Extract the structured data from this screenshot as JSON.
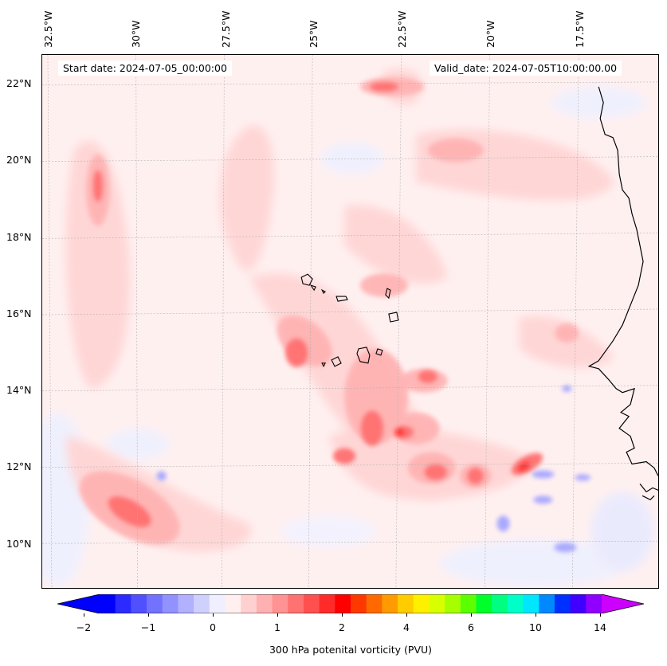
{
  "map": {
    "start_date": "Start date: 2024-07-05_00:00:00",
    "valid_date": "Valid_date: 2024-07-05T10:00:00.00",
    "lon_labels": [
      "32.5°W",
      "30°W",
      "27.5°W",
      "25°W",
      "22.5°W",
      "20°W",
      "17.5°W"
    ],
    "lat_labels": [
      "22°N",
      "20°N",
      "18°N",
      "16°N",
      "14°N",
      "12°N",
      "10°N"
    ]
  },
  "colorbar": {
    "title": "300 hPa potenital vorticity (PVU)",
    "tick_labels": [
      "−2",
      "−1",
      "0",
      "1",
      "2",
      "4",
      "6",
      "10",
      "14"
    ],
    "colors": [
      "#0000ff",
      "#2b2bff",
      "#5050ff",
      "#7272ff",
      "#9292ff",
      "#b1b1ff",
      "#d0d0ff",
      "#efefff",
      "#ffefef",
      "#ffd0d0",
      "#ffb1b1",
      "#ff9292",
      "#ff7272",
      "#ff5050",
      "#ff2b2b",
      "#ff0000",
      "#ff3800",
      "#ff6a00",
      "#ff9b00",
      "#ffcc00",
      "#fff000",
      "#d7ff00",
      "#a6ff00",
      "#5cff00",
      "#00ff2a",
      "#00ff80",
      "#00ffc8",
      "#00e6ff",
      "#0088ff",
      "#0030ff",
      "#4000ff",
      "#9000ff"
    ],
    "extend_low": "#0000ff",
    "extend_high": "#cc00ff"
  }
}
